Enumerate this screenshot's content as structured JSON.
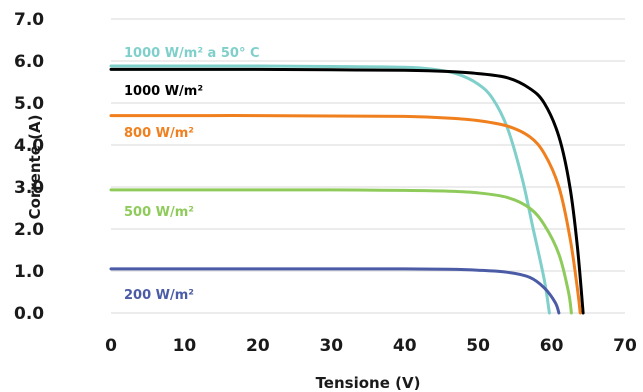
{
  "chart_data": {
    "type": "line",
    "title": "",
    "xlabel": "Tensione (V)",
    "ylabel": "Corrente (A)",
    "xlim": [
      0,
      70
    ],
    "ylim": [
      0,
      7
    ],
    "x_ticks": [
      "0",
      "10",
      "20",
      "30",
      "40",
      "50",
      "60",
      "70"
    ],
    "y_ticks": [
      "0.0",
      "1.0",
      "2.0",
      "3.0",
      "4.0",
      "5.0",
      "6.0",
      "7.0"
    ],
    "grid": "horizontal",
    "series": [
      {
        "name": "1000 W/m² a 50° C",
        "color": "#7fcfca",
        "points": [
          [
            0,
            5.88
          ],
          [
            10,
            5.88
          ],
          [
            20,
            5.88
          ],
          [
            30,
            5.87
          ],
          [
            40,
            5.85
          ],
          [
            44,
            5.8
          ],
          [
            47,
            5.7
          ],
          [
            50,
            5.45
          ],
          [
            52,
            5.1
          ],
          [
            54,
            4.4
          ],
          [
            56,
            3.2
          ],
          [
            57.5,
            2.0
          ],
          [
            59,
            0.8
          ],
          [
            59.7,
            0.0
          ]
        ]
      },
      {
        "name": "1000 W/m²",
        "color": "#000000",
        "points": [
          [
            0,
            5.8
          ],
          [
            10,
            5.8
          ],
          [
            20,
            5.8
          ],
          [
            30,
            5.79
          ],
          [
            40,
            5.78
          ],
          [
            46,
            5.75
          ],
          [
            50,
            5.7
          ],
          [
            54,
            5.6
          ],
          [
            57,
            5.35
          ],
          [
            59,
            5.0
          ],
          [
            61,
            4.2
          ],
          [
            62.5,
            3.0
          ],
          [
            63.5,
            1.6
          ],
          [
            64.3,
            0.0
          ]
        ]
      },
      {
        "name": "800 W/m²",
        "color": "#f07f1e",
        "points": [
          [
            0,
            4.7
          ],
          [
            10,
            4.7
          ],
          [
            20,
            4.7
          ],
          [
            30,
            4.69
          ],
          [
            40,
            4.68
          ],
          [
            46,
            4.64
          ],
          [
            50,
            4.58
          ],
          [
            54,
            4.45
          ],
          [
            57,
            4.2
          ],
          [
            59,
            3.8
          ],
          [
            61,
            3.0
          ],
          [
            62.5,
            1.8
          ],
          [
            63.5,
            0.6
          ],
          [
            63.9,
            0.0
          ]
        ]
      },
      {
        "name": "500 W/m²",
        "color": "#8fcb5b",
        "points": [
          [
            0,
            2.93
          ],
          [
            10,
            2.93
          ],
          [
            20,
            2.93
          ],
          [
            30,
            2.93
          ],
          [
            40,
            2.92
          ],
          [
            46,
            2.9
          ],
          [
            50,
            2.86
          ],
          [
            54,
            2.75
          ],
          [
            57,
            2.5
          ],
          [
            59,
            2.1
          ],
          [
            61,
            1.4
          ],
          [
            62.3,
            0.5
          ],
          [
            62.7,
            0.0
          ]
        ]
      },
      {
        "name": "200 W/m²",
        "color": "#4b5ba6",
        "points": [
          [
            0,
            1.05
          ],
          [
            10,
            1.05
          ],
          [
            20,
            1.05
          ],
          [
            30,
            1.05
          ],
          [
            40,
            1.05
          ],
          [
            46,
            1.04
          ],
          [
            50,
            1.02
          ],
          [
            54,
            0.97
          ],
          [
            57,
            0.85
          ],
          [
            59,
            0.6
          ],
          [
            60.5,
            0.25
          ],
          [
            61,
            0.0
          ]
        ]
      }
    ]
  }
}
